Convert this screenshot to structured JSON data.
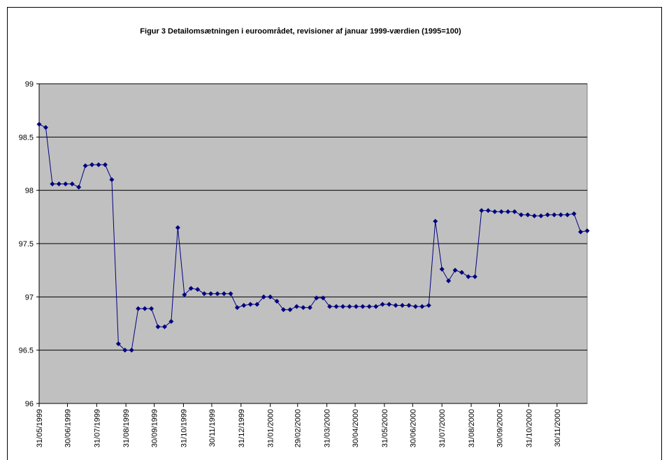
{
  "chart_data": {
    "type": "line",
    "title": "Figur 3    Detailomsætningen i euroområdet, revisioner af januar 1999-værdien (1995=100)",
    "x": [
      "31/05/1999",
      "07/06/1999",
      "14/06/1999",
      "21/06/1999",
      "28/06/1999",
      "05/07/1999",
      "12/07/1999",
      "19/07/1999",
      "26/07/1999",
      "02/08/1999",
      "09/08/1999",
      "16/08/1999",
      "23/08/1999",
      "30/08/1999",
      "06/09/1999",
      "13/09/1999",
      "20/09/1999",
      "27/09/1999",
      "04/10/1999",
      "11/10/1999",
      "18/10/1999",
      "25/10/1999",
      "01/11/1999",
      "08/11/1999",
      "15/11/1999",
      "22/11/1999",
      "29/11/1999",
      "06/12/1999",
      "13/12/1999",
      "20/12/1999",
      "27/12/1999",
      "03/01/2000",
      "10/01/2000",
      "17/01/2000",
      "24/01/2000",
      "31/01/2000",
      "07/02/2000",
      "14/02/2000",
      "21/02/2000",
      "28/02/2000",
      "06/03/2000",
      "13/03/2000",
      "20/03/2000",
      "27/03/2000",
      "03/04/2000",
      "10/04/2000",
      "17/04/2000",
      "24/04/2000",
      "01/05/2000",
      "08/05/2000",
      "15/05/2000",
      "22/05/2000",
      "29/05/2000",
      "05/06/2000",
      "12/06/2000",
      "19/06/2000",
      "26/06/2000",
      "03/07/2000",
      "10/07/2000",
      "17/07/2000",
      "24/07/2000",
      "31/07/2000",
      "07/08/2000",
      "14/08/2000",
      "21/08/2000",
      "28/08/2000",
      "04/09/2000",
      "11/09/2000",
      "18/09/2000",
      "25/09/2000",
      "02/10/2000",
      "09/10/2000",
      "16/10/2000",
      "23/10/2000",
      "30/10/2000",
      "06/11/2000",
      "13/11/2000",
      "20/11/2000",
      "27/11/2000",
      "04/12/2000",
      "11/12/2000",
      "18/12/2000",
      "25/12/2000",
      "01/01/2001"
    ],
    "series": [
      {
        "color": "#000080",
        "values": [
          98.62,
          98.59,
          98.06,
          98.06,
          98.06,
          98.06,
          98.03,
          98.23,
          98.24,
          98.24,
          98.24,
          98.1,
          96.56,
          96.5,
          96.5,
          96.89,
          96.89,
          96.89,
          96.72,
          96.72,
          96.77,
          97.65,
          97.02,
          97.08,
          97.07,
          97.03,
          97.03,
          97.03,
          97.03,
          97.03,
          96.9,
          96.92,
          96.93,
          96.93,
          97.0,
          97.0,
          96.96,
          96.88,
          96.88,
          96.91,
          96.9,
          96.9,
          96.99,
          96.99,
          96.91,
          96.91,
          96.91,
          96.91,
          96.91,
          96.91,
          96.91,
          96.91,
          96.93,
          96.93,
          96.92,
          96.92,
          96.92,
          96.91,
          96.91,
          96.92,
          97.71,
          97.26,
          97.15,
          97.25,
          97.23,
          97.19,
          97.19,
          97.81,
          97.81,
          97.8,
          97.8,
          97.8,
          97.8,
          97.77,
          97.77,
          97.76,
          97.76,
          97.77,
          97.77,
          97.77,
          97.77,
          97.78,
          97.61,
          97.62
        ]
      }
    ],
    "xlim": [
      "31/05/1999",
      "01/01/2001"
    ],
    "xticks": [
      "31/05/1999",
      "30/06/1999",
      "31/07/1999",
      "31/08/1999",
      "30/09/1999",
      "31/10/1999",
      "30/11/1999",
      "31/12/1999",
      "31/01/2000",
      "29/02/2000",
      "31/03/2000",
      "30/04/2000",
      "31/05/2000",
      "30/06/2000",
      "31/07/2000",
      "31/08/2000",
      "30/09/2000",
      "31/10/2000",
      "30/11/2000"
    ],
    "ylim": [
      96,
      99
    ],
    "yticks": [
      96,
      96.5,
      97,
      97.5,
      98,
      98.5,
      99
    ],
    "grid": true,
    "background": "#c0c0c0"
  }
}
